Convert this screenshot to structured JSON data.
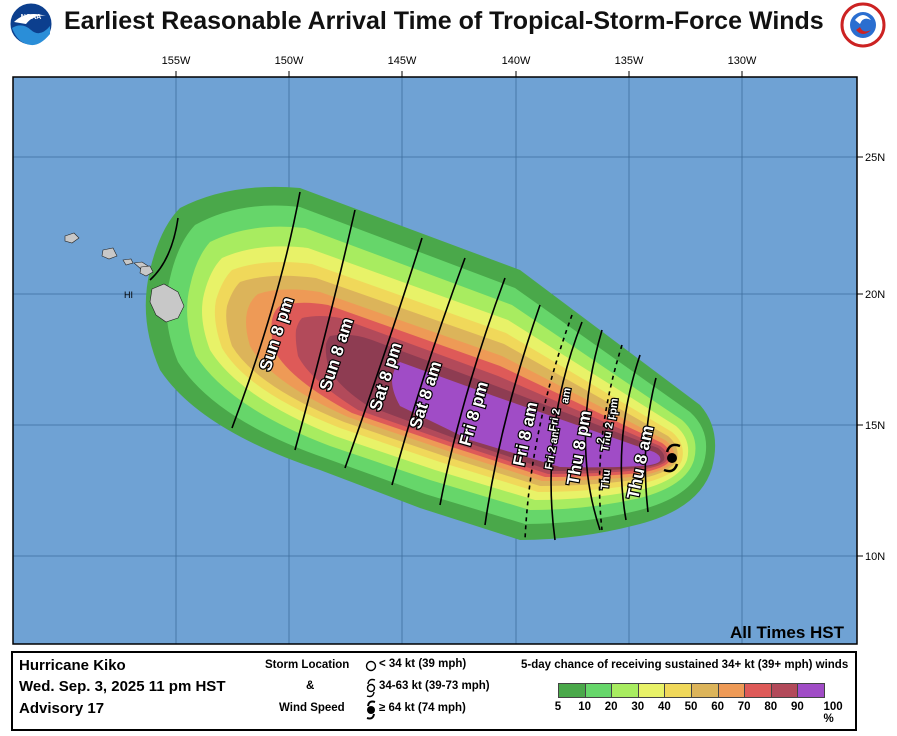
{
  "header": {
    "title": "Earliest Reasonable Arrival Time of Tropical-Storm-Force Winds",
    "left_logo_text": "NOAA",
    "right_logo_text": "NATIONAL WEATHER SERVICE"
  },
  "map": {
    "longitude_labels": [
      "155W",
      "150W",
      "145W",
      "140W",
      "135W",
      "130W"
    ],
    "latitude_labels": [
      "25N",
      "20N",
      "15N",
      "10N"
    ],
    "place_label": "HI",
    "times_note": "All Times HST",
    "colors": {
      "ocean": "#6fa2d4",
      "land": "#c8c8c8"
    },
    "arrival_labels": [
      "Sun 8 pm",
      "Sun 8 am",
      "Sat 8 pm",
      "Sat 8 am",
      "Fri 8 pm",
      "Fri 8 am",
      "Fri 2 am",
      "Fri 2",
      "am",
      "Thu 8 pm",
      "Thu 2 pm",
      "Thu",
      "2",
      "pm",
      "Thu 8 am"
    ]
  },
  "footer": {
    "storm_name": "Hurricane Kiko",
    "datetime": "Wed. Sep. 3, 2025  11 pm HST",
    "advisory": "Advisory 17",
    "legend_title_1": "Storm Location",
    "legend_title_2": "&",
    "legend_title_3": "Wind Speed",
    "legend_items": [
      "< 34 kt (39 mph)",
      "34-63 kt (39-73 mph)",
      "≥ 64 kt (74 mph)"
    ],
    "colorbar_title": "5-day chance of receiving sustained 34+ kt (39+ mph) winds",
    "colorbar_labels": [
      "5",
      "10",
      "20",
      "30",
      "40",
      "50",
      "60",
      "70",
      "80",
      "90",
      "100 %"
    ],
    "colorbar_colors": [
      "#4aa84a",
      "#66d66a",
      "#a8ec60",
      "#e8f268",
      "#f0d85a",
      "#dcb45a",
      "#ee9a56",
      "#de5a58",
      "#b24a5a",
      "#a04cc6"
    ]
  }
}
